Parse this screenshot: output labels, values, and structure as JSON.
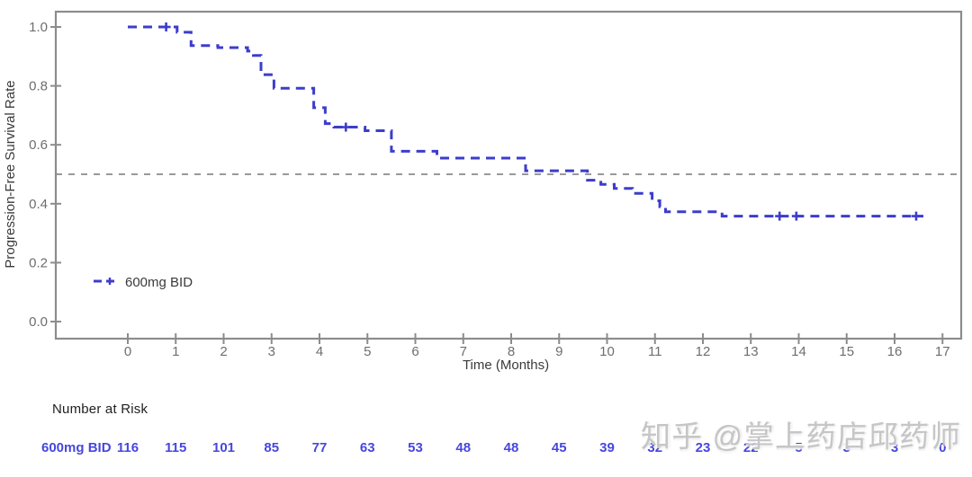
{
  "chart_data": {
    "type": "line",
    "subtype": "kaplan-meier-step",
    "title": "",
    "xlabel": "Time (Months)",
    "ylabel": "Progression-Free Survival Rate",
    "xlim": [
      -1.5,
      17.4
    ],
    "ylim": [
      -0.06,
      1.05
    ],
    "xticks": [
      0,
      1,
      2,
      3,
      4,
      5,
      6,
      7,
      8,
      9,
      10,
      11,
      12,
      13,
      14,
      15,
      16,
      17
    ],
    "ytick_labels": [
      "0.0",
      "0.2",
      "0.4",
      "0.6",
      "0.8",
      "1.0"
    ],
    "ytick_values": [
      0.0,
      0.2,
      0.4,
      0.6,
      0.8,
      1.0
    ],
    "grid": false,
    "reference_line_y": 0.5,
    "legend": {
      "label": "600mg BID",
      "position": "inside-bottom-left"
    },
    "series": [
      {
        "name": "600mg BID",
        "line_style": "dashed",
        "points": [
          [
            0,
            1.0
          ],
          [
            1.03,
            0.982
          ],
          [
            1.32,
            0.937
          ],
          [
            1.88,
            0.93
          ],
          [
            2.5,
            0.918
          ],
          [
            2.62,
            0.903
          ],
          [
            2.78,
            0.838
          ],
          [
            3.05,
            0.792
          ],
          [
            3.88,
            0.726
          ],
          [
            4.12,
            0.672
          ],
          [
            4.3,
            0.66
          ],
          [
            4.95,
            0.648
          ],
          [
            5.5,
            0.578
          ],
          [
            6.45,
            0.555
          ],
          [
            8.3,
            0.512
          ],
          [
            9.59,
            0.48
          ],
          [
            9.87,
            0.466
          ],
          [
            10.15,
            0.452
          ],
          [
            10.53,
            0.435
          ],
          [
            10.94,
            0.41
          ],
          [
            11.1,
            0.39
          ],
          [
            11.22,
            0.373
          ],
          [
            12.4,
            0.358
          ],
          [
            16.6,
            0.358
          ]
        ],
        "censor_marks": [
          [
            0.8,
            1.0
          ],
          [
            4.55,
            0.66
          ],
          [
            13.6,
            0.358
          ],
          [
            13.95,
            0.358
          ],
          [
            16.45,
            0.358
          ]
        ]
      }
    ],
    "colors": {
      "curve": "#3d3dcc",
      "reference_line": "#999999",
      "axis": "#8c8c8c",
      "tick_label": "#6e6e6e",
      "axis_title": "#3a3a3a",
      "risk_text": "#4747dd",
      "heading_text": "#1f1f1f"
    }
  },
  "number_at_risk": {
    "heading": "Number at Risk",
    "row_label": "600mg BID",
    "times": [
      0,
      1,
      2,
      3,
      4,
      5,
      6,
      7,
      8,
      9,
      10,
      11,
      12,
      13,
      14,
      15,
      16,
      17
    ],
    "values": [
      116,
      115,
      101,
      85,
      77,
      63,
      53,
      48,
      48,
      45,
      39,
      32,
      23,
      22,
      5,
      3,
      3,
      0
    ]
  },
  "watermark": {
    "text": "知乎 @掌上药店邱药师"
  }
}
